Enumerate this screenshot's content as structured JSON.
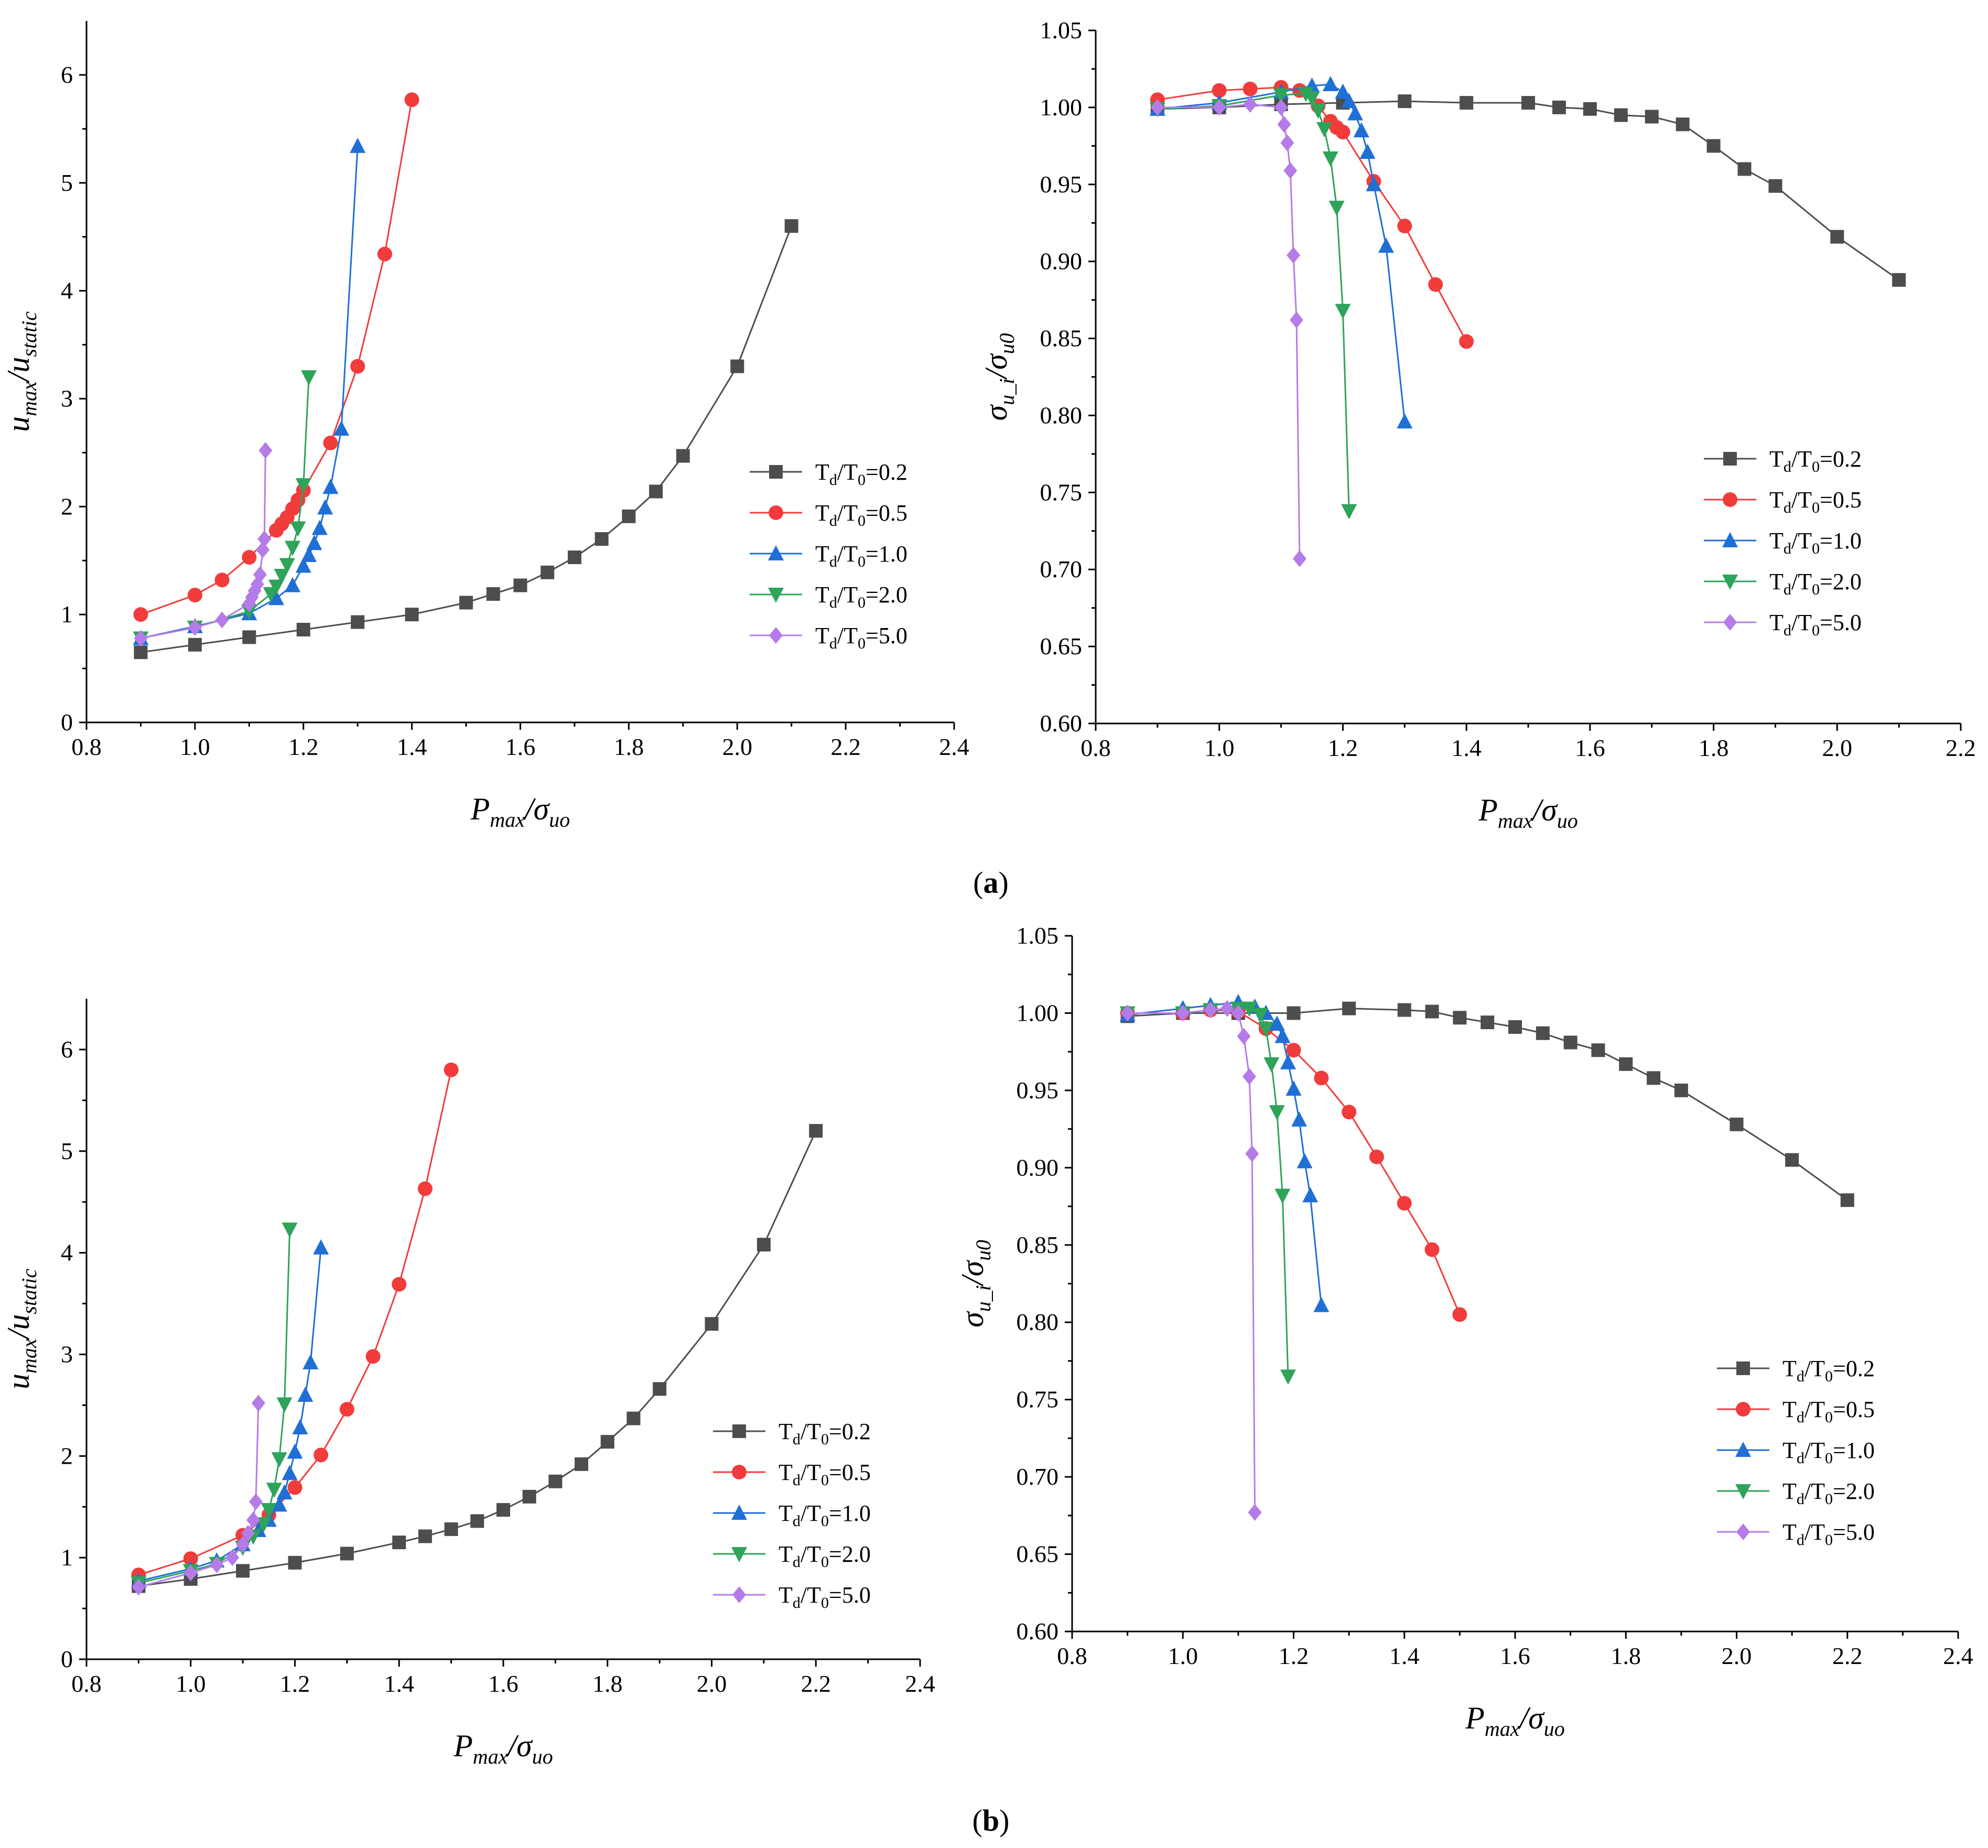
{
  "panel_labels": [
    {
      "open": "(",
      "letter": "a",
      "close": ")"
    },
    {
      "open": "(",
      "letter": "b",
      "close": ")"
    }
  ],
  "series_styles": [
    {
      "color": "#4d4d4d",
      "marker": "square"
    },
    {
      "color": "#f23b3b",
      "marker": "circle"
    },
    {
      "color": "#1f6fd6",
      "marker": "triangle-up"
    },
    {
      "color": "#2ea35a",
      "marker": "triangle-down"
    },
    {
      "color": "#b57be8",
      "marker": "diamond"
    }
  ],
  "chart_data": [
    {
      "type": "line",
      "xlabel": {
        "main": "P",
        "sub": "max",
        "sep": "/σ",
        "sub2": "uo"
      },
      "ylabel": {
        "main": "u",
        "sub": "max",
        "sep": "/u",
        "sub2": "static"
      },
      "xlim": [
        0.8,
        2.4
      ],
      "ylim": [
        0,
        6.5
      ],
      "xticks": [
        "0.8",
        "1.0",
        "1.2",
        "1.4",
        "1.6",
        "1.8",
        "2.0",
        "2.2",
        "2.4"
      ],
      "yticks": [
        "0",
        "1",
        "2",
        "3",
        "4",
        "5",
        "6"
      ],
      "legend_position": "right-middle",
      "series": [
        {
          "name": {
            "a": "T",
            "b": "d",
            "c": "/T",
            "d": "0",
            "e": "=0.2"
          },
          "x": [
            0.9,
            1.0,
            1.1,
            1.2,
            1.3,
            1.4,
            1.5,
            1.55,
            1.6,
            1.65,
            1.7,
            1.75,
            1.8,
            1.85,
            1.9,
            2.0,
            2.1
          ],
          "y": [
            0.65,
            0.72,
            0.79,
            0.86,
            0.93,
            1.0,
            1.11,
            1.19,
            1.27,
            1.39,
            1.53,
            1.7,
            1.91,
            2.14,
            2.47,
            3.3,
            4.6
          ]
        },
        {
          "name": {
            "a": "T",
            "b": "d",
            "c": "/T",
            "d": "0",
            "e": "=0.5"
          },
          "x": [
            0.9,
            1.0,
            1.05,
            1.1,
            1.15,
            1.16,
            1.17,
            1.18,
            1.19,
            1.2,
            1.25,
            1.3,
            1.35,
            1.4
          ],
          "y": [
            1.0,
            1.18,
            1.32,
            1.53,
            1.78,
            1.84,
            1.9,
            1.98,
            2.06,
            2.15,
            2.59,
            3.3,
            4.34,
            5.77
          ]
        },
        {
          "name": {
            "a": "T",
            "b": "d",
            "c": "/T",
            "d": "0",
            "e": "=1.0"
          },
          "x": [
            0.9,
            1.0,
            1.1,
            1.15,
            1.18,
            1.2,
            1.21,
            1.22,
            1.23,
            1.24,
            1.25,
            1.27,
            1.3
          ],
          "y": [
            0.78,
            0.89,
            1.01,
            1.15,
            1.27,
            1.45,
            1.55,
            1.66,
            1.8,
            1.99,
            2.18,
            2.72,
            5.34
          ],
          "note": "triangle-up"
        },
        {
          "name": {
            "a": "T",
            "b": "d",
            "c": "/T",
            "d": "0",
            "e": "=2.0"
          },
          "x": [
            0.9,
            1.0,
            1.1,
            1.14,
            1.15,
            1.16,
            1.17,
            1.18,
            1.19,
            1.2,
            1.21
          ],
          "y": [
            0.78,
            0.88,
            1.03,
            1.19,
            1.26,
            1.36,
            1.46,
            1.62,
            1.8,
            2.2,
            3.2
          ]
        },
        {
          "name": {
            "a": "T",
            "b": "d",
            "c": "/T",
            "d": "0",
            "e": "=5.0"
          },
          "x": [
            0.9,
            1.0,
            1.05,
            1.1,
            1.105,
            1.11,
            1.115,
            1.12,
            1.125,
            1.128,
            1.13
          ],
          "y": [
            0.78,
            0.88,
            0.95,
            1.1,
            1.16,
            1.22,
            1.28,
            1.37,
            1.6,
            1.7,
            2.52
          ]
        }
      ]
    },
    {
      "type": "line",
      "xlabel": {
        "main": "P",
        "sub": "max",
        "sep": "/σ",
        "sub2": "uo"
      },
      "ylabel": {
        "main": "σ",
        "sub": "u_i",
        "sep": "/σ",
        "sub2": "u0"
      },
      "xlim": [
        0.8,
        2.2
      ],
      "ylim": [
        0.6,
        1.05
      ],
      "xticks": [
        "0.8",
        "1.0",
        "1.2",
        "1.4",
        "1.6",
        "1.8",
        "2.0",
        "2.2"
      ],
      "yticks": [
        "0.60",
        "0.65",
        "0.70",
        "0.75",
        "0.80",
        "0.85",
        "0.90",
        "0.95",
        "1.00",
        "1.05"
      ],
      "legend_position": "right-middle",
      "series": [
        {
          "name": {
            "a": "T",
            "b": "d",
            "c": "/T",
            "d": "0",
            "e": "=0.2"
          },
          "x": [
            0.9,
            1.0,
            1.1,
            1.2,
            1.3,
            1.4,
            1.5,
            1.55,
            1.6,
            1.65,
            1.7,
            1.75,
            1.8,
            1.85,
            1.9,
            2.0,
            2.1
          ],
          "y": [
            0.999,
            1.0,
            1.002,
            1.003,
            1.004,
            1.003,
            1.003,
            1.0,
            0.999,
            0.995,
            0.994,
            0.989,
            0.975,
            0.96,
            0.949,
            0.916,
            0.888
          ]
        },
        {
          "name": {
            "a": "T",
            "b": "d",
            "c": "/T",
            "d": "0",
            "e": "=0.5"
          },
          "x": [
            0.9,
            1.0,
            1.05,
            1.1,
            1.13,
            1.16,
            1.18,
            1.19,
            1.2,
            1.25,
            1.3,
            1.35,
            1.4
          ],
          "y": [
            1.005,
            1.011,
            1.012,
            1.013,
            1.011,
            1.001,
            0.991,
            0.987,
            0.984,
            0.952,
            0.923,
            0.885,
            0.848
          ]
        },
        {
          "name": {
            "a": "T",
            "b": "d",
            "c": "/T",
            "d": "0",
            "e": "=1.0"
          },
          "x": [
            0.9,
            1.0,
            1.1,
            1.15,
            1.18,
            1.2,
            1.21,
            1.22,
            1.23,
            1.24,
            1.25,
            1.27,
            1.3
          ],
          "y": [
            0.999,
            1.003,
            1.01,
            1.014,
            1.015,
            1.01,
            1.004,
            0.996,
            0.985,
            0.971,
            0.95,
            0.91,
            0.796
          ]
        },
        {
          "name": {
            "a": "T",
            "b": "d",
            "c": "/T",
            "d": "0",
            "e": "=2.0"
          },
          "x": [
            0.9,
            1.0,
            1.1,
            1.14,
            1.15,
            1.16,
            1.17,
            1.18,
            1.19,
            1.2,
            1.21
          ],
          "y": [
            0.999,
            1.001,
            1.008,
            1.009,
            1.006,
            0.998,
            0.986,
            0.967,
            0.935,
            0.868,
            0.738
          ]
        },
        {
          "name": {
            "a": "T",
            "b": "d",
            "c": "/T",
            "d": "0",
            "e": "=5.0"
          },
          "x": [
            0.9,
            1.0,
            1.05,
            1.1,
            1.105,
            1.11,
            1.115,
            1.12,
            1.125,
            1.13
          ],
          "y": [
            1.0,
            1.0,
            1.002,
            1.0,
            0.989,
            0.977,
            0.959,
            0.904,
            0.862,
            0.707
          ]
        }
      ]
    },
    {
      "type": "line",
      "xlabel": {
        "main": "P",
        "sub": "max",
        "sep": "/σ",
        "sub2": "uo"
      },
      "ylabel": {
        "main": "u",
        "sub": "max",
        "sep": "/u",
        "sub2": "static"
      },
      "xlim": [
        0.8,
        2.4
      ],
      "ylim": [
        0,
        6.5
      ],
      "xticks": [
        "0.8",
        "1.0",
        "1.2",
        "1.4",
        "1.6",
        "1.8",
        "2.0",
        "2.2",
        "2.4"
      ],
      "yticks": [
        "0",
        "1",
        "2",
        "3",
        "4",
        "5",
        "6"
      ],
      "legend_position": "right-middle",
      "series": [
        {
          "name": {
            "a": "T",
            "b": "d",
            "c": "/T",
            "d": "0",
            "e": "=0.2"
          },
          "x": [
            0.9,
            1.0,
            1.1,
            1.2,
            1.3,
            1.4,
            1.45,
            1.5,
            1.55,
            1.6,
            1.65,
            1.7,
            1.75,
            1.8,
            1.85,
            1.9,
            2.0,
            2.1,
            2.2
          ],
          "y": [
            0.72,
            0.79,
            0.87,
            0.95,
            1.04,
            1.15,
            1.21,
            1.28,
            1.36,
            1.47,
            1.6,
            1.75,
            1.92,
            2.14,
            2.37,
            2.66,
            3.3,
            4.08,
            5.2
          ]
        },
        {
          "name": {
            "a": "T",
            "b": "d",
            "c": "/T",
            "d": "0",
            "e": "=0.5"
          },
          "x": [
            0.9,
            1.0,
            1.1,
            1.15,
            1.2,
            1.25,
            1.3,
            1.35,
            1.4,
            1.45,
            1.5
          ],
          "y": [
            0.83,
            0.99,
            1.22,
            1.42,
            1.69,
            2.01,
            2.46,
            2.98,
            3.69,
            4.63,
            5.8
          ]
        },
        {
          "name": {
            "a": "T",
            "b": "d",
            "c": "/T",
            "d": "0",
            "e": "=1.0"
          },
          "x": [
            0.9,
            1.0,
            1.05,
            1.1,
            1.13,
            1.15,
            1.17,
            1.18,
            1.19,
            1.2,
            1.21,
            1.22,
            1.23,
            1.25
          ],
          "y": [
            0.77,
            0.89,
            0.97,
            1.13,
            1.27,
            1.37,
            1.52,
            1.64,
            1.83,
            2.04,
            2.28,
            2.6,
            2.92,
            4.05
          ]
        },
        {
          "name": {
            "a": "T",
            "b": "d",
            "c": "/T",
            "d": "0",
            "e": "=2.0"
          },
          "x": [
            0.9,
            1.0,
            1.05,
            1.1,
            1.12,
            1.14,
            1.15,
            1.16,
            1.17,
            1.18,
            1.19
          ],
          "y": [
            0.75,
            0.87,
            0.94,
            1.1,
            1.21,
            1.33,
            1.47,
            1.67,
            1.97,
            2.51,
            4.23
          ]
        },
        {
          "name": {
            "a": "T",
            "b": "d",
            "c": "/T",
            "d": "0",
            "e": "=5.0"
          },
          "x": [
            0.9,
            1.0,
            1.05,
            1.08,
            1.1,
            1.11,
            1.12,
            1.125,
            1.13
          ],
          "y": [
            0.71,
            0.85,
            0.93,
            1.0,
            1.13,
            1.24,
            1.37,
            1.55,
            2.52
          ]
        }
      ]
    },
    {
      "type": "line",
      "xlabel": {
        "main": "P",
        "sub": "max",
        "sep": "/σ",
        "sub2": "uo"
      },
      "ylabel": {
        "main": "σ",
        "sub": "u_i",
        "sep": "/σ",
        "sub2": "u0"
      },
      "xlim": [
        0.8,
        2.4
      ],
      "ylim": [
        0.6,
        1.05
      ],
      "xticks": [
        "0.8",
        "1.0",
        "1.2",
        "1.4",
        "1.6",
        "1.8",
        "2.0",
        "2.2",
        "2.4"
      ],
      "yticks": [
        "0.60",
        "0.65",
        "0.70",
        "0.75",
        "0.80",
        "0.85",
        "0.90",
        "0.95",
        "1.00",
        "1.05"
      ],
      "legend_position": "right-middle",
      "series": [
        {
          "name": {
            "a": "T",
            "b": "d",
            "c": "/T",
            "d": "0",
            "e": "=0.2"
          },
          "x": [
            0.9,
            1.0,
            1.1,
            1.2,
            1.3,
            1.4,
            1.45,
            1.5,
            1.55,
            1.6,
            1.65,
            1.7,
            1.75,
            1.8,
            1.85,
            1.9,
            2.0,
            2.1,
            2.2
          ],
          "y": [
            0.998,
            1.0,
            1.0,
            1.0,
            1.003,
            1.002,
            1.001,
            0.997,
            0.994,
            0.991,
            0.987,
            0.981,
            0.976,
            0.967,
            0.958,
            0.95,
            0.928,
            0.905,
            0.879
          ]
        },
        {
          "name": {
            "a": "T",
            "b": "d",
            "c": "/T",
            "d": "0",
            "e": "=0.5"
          },
          "x": [
            0.9,
            1.0,
            1.05,
            1.1,
            1.15,
            1.2,
            1.25,
            1.3,
            1.35,
            1.4,
            1.45,
            1.5
          ],
          "y": [
            1.0,
            1.0,
            1.002,
            1.001,
            0.99,
            0.976,
            0.958,
            0.936,
            0.907,
            0.877,
            0.847,
            0.805
          ]
        },
        {
          "name": {
            "a": "T",
            "b": "d",
            "c": "/T",
            "d": "0",
            "e": "=1.0"
          },
          "x": [
            0.9,
            1.0,
            1.05,
            1.1,
            1.13,
            1.15,
            1.17,
            1.18,
            1.19,
            1.2,
            1.21,
            1.22,
            1.23,
            1.25
          ],
          "y": [
            0.999,
            1.003,
            1.005,
            1.007,
            1.004,
            1.0,
            0.993,
            0.985,
            0.968,
            0.951,
            0.931,
            0.904,
            0.882,
            0.811
          ]
        },
        {
          "name": {
            "a": "T",
            "b": "d",
            "c": "/T",
            "d": "0",
            "e": "=2.0"
          },
          "x": [
            0.9,
            1.0,
            1.05,
            1.1,
            1.12,
            1.14,
            1.15,
            1.16,
            1.17,
            1.18,
            1.19
          ],
          "y": [
            1.0,
            1.0,
            1.002,
            1.003,
            1.003,
            0.999,
            0.99,
            0.967,
            0.936,
            0.882,
            0.765
          ]
        },
        {
          "name": {
            "a": "T",
            "b": "d",
            "c": "/T",
            "d": "0",
            "e": "=5.0"
          },
          "x": [
            0.9,
            1.0,
            1.05,
            1.08,
            1.1,
            1.11,
            1.12,
            1.125,
            1.13
          ],
          "y": [
            1.0,
            1.0,
            1.002,
            1.003,
            1.0,
            0.985,
            0.959,
            0.909,
            0.677
          ]
        }
      ]
    }
  ]
}
